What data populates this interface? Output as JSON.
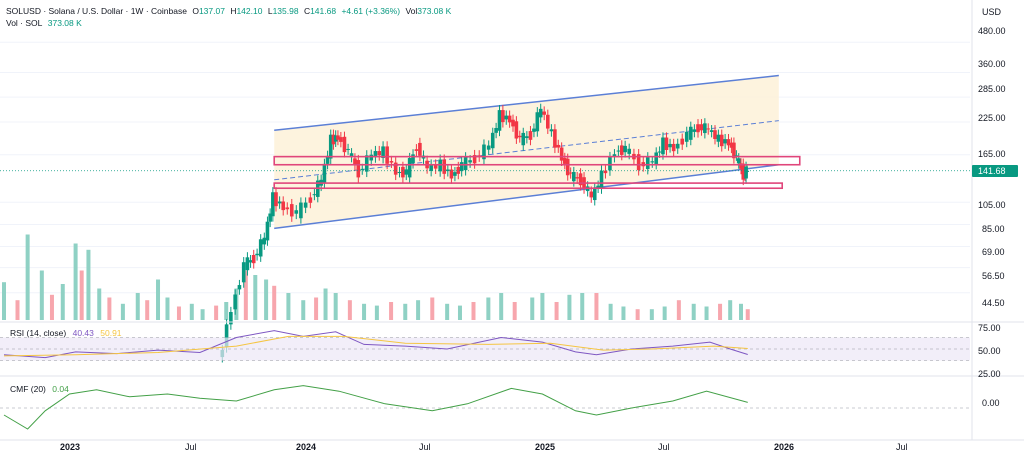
{
  "header": {
    "symbol_title": "SOLUSD · Solana / U.S. Dollar · 1W · Coinbase",
    "o_key": "O",
    "o_val": "137.07",
    "h_key": "H",
    "h_val": "142.10",
    "l_key": "L",
    "l_val": "135.98",
    "c_key": "C",
    "c_val": "141.68",
    "change": "+4.61 (+3.36%)",
    "vol_key": "Vol",
    "vol_val": "373.08 K",
    "vol_label": "Vol · SOL",
    "vol_label_val": "373.08 K"
  },
  "price_axis": {
    "currency": "USD",
    "ticks": [
      "480.00",
      "360.00",
      "285.00",
      "225.00",
      "165.00",
      "105.00",
      "85.00",
      "69.00",
      "56.50",
      "44.50"
    ],
    "last_price": "141.68"
  },
  "rsi": {
    "label": "RSI (14, close)",
    "value": "40.43",
    "ma_value": "50.91",
    "ticks": [
      "75.00",
      "50.00",
      "25.00"
    ]
  },
  "cmf": {
    "label": "CMF (20)",
    "value": "0.04",
    "ticks": [
      "0.00"
    ]
  },
  "time_axis": {
    "labels": [
      "2023",
      "Jul",
      "2024",
      "Jul",
      "2025",
      "Jul",
      "2026",
      "Jul"
    ]
  },
  "colors": {
    "up": "#089981",
    "down": "#f23645",
    "channel": "#5b7fd6",
    "zone": "#e0457b",
    "rsi_line": "#7e57c2",
    "rsi_ma": "#f5c542",
    "cmf_line": "#43a047"
  },
  "chart_data": {
    "type": "candlestick",
    "title": "SOLUSD · Solana / U.S. Dollar · 1W · Coinbase",
    "price_scale": "log",
    "ylim": [
      35,
      560
    ],
    "x_range": [
      "2022-11-15",
      "2026-10-15"
    ],
    "price_path": [
      {
        "date": "2023-10-01",
        "price": 23
      },
      {
        "date": "2023-10-20",
        "price": 38
      },
      {
        "date": "2023-11-08",
        "price": 58
      },
      {
        "date": "2023-11-22",
        "price": 62
      },
      {
        "date": "2023-12-08",
        "price": 75
      },
      {
        "date": "2023-12-20",
        "price": 110
      },
      {
        "date": "2024-01-05",
        "price": 100
      },
      {
        "date": "2024-01-25",
        "price": 95
      },
      {
        "date": "2024-02-15",
        "price": 110
      },
      {
        "date": "2024-03-01",
        "price": 130
      },
      {
        "date": "2024-03-15",
        "price": 190
      },
      {
        "date": "2024-03-25",
        "price": 195
      },
      {
        "date": "2024-04-10",
        "price": 170
      },
      {
        "date": "2024-04-25",
        "price": 140
      },
      {
        "date": "2024-05-15",
        "price": 165
      },
      {
        "date": "2024-06-01",
        "price": 170
      },
      {
        "date": "2024-06-20",
        "price": 140
      },
      {
        "date": "2024-07-05",
        "price": 140
      },
      {
        "date": "2024-07-20",
        "price": 180
      },
      {
        "date": "2024-08-05",
        "price": 145
      },
      {
        "date": "2024-08-25",
        "price": 150
      },
      {
        "date": "2024-09-10",
        "price": 135
      },
      {
        "date": "2024-09-25",
        "price": 150
      },
      {
        "date": "2024-10-15",
        "price": 160
      },
      {
        "date": "2024-11-05",
        "price": 180
      },
      {
        "date": "2024-11-20",
        "price": 240
      },
      {
        "date": "2024-12-05",
        "price": 230
      },
      {
        "date": "2024-12-20",
        "price": 190
      },
      {
        "date": "2025-01-05",
        "price": 200
      },
      {
        "date": "2025-01-20",
        "price": 255
      },
      {
        "date": "2025-02-05",
        "price": 200
      },
      {
        "date": "2025-02-20",
        "price": 160
      },
      {
        "date": "2025-03-05",
        "price": 135
      },
      {
        "date": "2025-03-20",
        "price": 130
      },
      {
        "date": "2025-04-05",
        "price": 110
      },
      {
        "date": "2025-04-20",
        "price": 135
      },
      {
        "date": "2025-05-10",
        "price": 170
      },
      {
        "date": "2025-05-25",
        "price": 175
      },
      {
        "date": "2025-06-15",
        "price": 150
      },
      {
        "date": "2025-07-05",
        "price": 155
      },
      {
        "date": "2025-07-20",
        "price": 185
      },
      {
        "date": "2025-08-05",
        "price": 175
      },
      {
        "date": "2025-08-25",
        "price": 200
      },
      {
        "date": "2025-09-10",
        "price": 215
      },
      {
        "date": "2025-09-25",
        "price": 210
      },
      {
        "date": "2025-10-10",
        "price": 190
      },
      {
        "date": "2025-10-25",
        "price": 185
      },
      {
        "date": "2025-11-05",
        "price": 160
      },
      {
        "date": "2025-11-15",
        "price": 137
      },
      {
        "date": "2025-11-20",
        "price": 141.68
      }
    ],
    "volume_series": [
      {
        "date": "2022-11-15",
        "v": 0.42
      },
      {
        "date": "2022-12-05",
        "v": 0.22
      },
      {
        "date": "2022-12-20",
        "v": 0.95
      },
      {
        "date": "2023-01-10",
        "v": 0.55
      },
      {
        "date": "2023-01-25",
        "v": 0.28
      },
      {
        "date": "2023-02-10",
        "v": 0.4
      },
      {
        "date": "2023-03-01",
        "v": 0.85
      },
      {
        "date": "2023-03-10",
        "v": 0.55
      },
      {
        "date": "2023-03-20",
        "v": 0.78
      },
      {
        "date": "2023-04-05",
        "v": 0.35
      },
      {
        "date": "2023-04-20",
        "v": 0.25
      },
      {
        "date": "2023-05-10",
        "v": 0.18
      },
      {
        "date": "2023-06-01",
        "v": 0.3
      },
      {
        "date": "2023-06-15",
        "v": 0.22
      },
      {
        "date": "2023-07-01",
        "v": 0.45
      },
      {
        "date": "2023-07-15",
        "v": 0.25
      },
      {
        "date": "2023-08-01",
        "v": 0.15
      },
      {
        "date": "2023-08-20",
        "v": 0.18
      },
      {
        "date": "2023-09-05",
        "v": 0.12
      },
      {
        "date": "2023-09-25",
        "v": 0.16
      },
      {
        "date": "2023-10-10",
        "v": 0.2
      },
      {
        "date": "2023-10-25",
        "v": 0.35
      },
      {
        "date": "2023-11-08",
        "v": 0.55
      },
      {
        "date": "2023-11-22",
        "v": 0.5
      },
      {
        "date": "2023-12-08",
        "v": 0.45
      },
      {
        "date": "2023-12-20",
        "v": 0.38
      },
      {
        "date": "2024-01-10",
        "v": 0.3
      },
      {
        "date": "2024-02-01",
        "v": 0.22
      },
      {
        "date": "2024-02-20",
        "v": 0.25
      },
      {
        "date": "2024-03-05",
        "v": 0.35
      },
      {
        "date": "2024-03-20",
        "v": 0.3
      },
      {
        "date": "2024-04-10",
        "v": 0.22
      },
      {
        "date": "2024-05-01",
        "v": 0.18
      },
      {
        "date": "2024-05-20",
        "v": 0.16
      },
      {
        "date": "2024-06-10",
        "v": 0.2
      },
      {
        "date": "2024-07-01",
        "v": 0.18
      },
      {
        "date": "2024-07-20",
        "v": 0.22
      },
      {
        "date": "2024-08-10",
        "v": 0.25
      },
      {
        "date": "2024-09-01",
        "v": 0.18
      },
      {
        "date": "2024-09-20",
        "v": 0.16
      },
      {
        "date": "2024-10-10",
        "v": 0.2
      },
      {
        "date": "2024-11-01",
        "v": 0.25
      },
      {
        "date": "2024-11-20",
        "v": 0.3
      },
      {
        "date": "2024-12-10",
        "v": 0.2
      },
      {
        "date": "2025-01-05",
        "v": 0.25
      },
      {
        "date": "2025-01-20",
        "v": 0.3
      },
      {
        "date": "2025-02-10",
        "v": 0.2
      },
      {
        "date": "2025-03-01",
        "v": 0.28
      },
      {
        "date": "2025-03-20",
        "v": 0.3
      },
      {
        "date": "2025-04-10",
        "v": 0.3
      },
      {
        "date": "2025-05-01",
        "v": 0.18
      },
      {
        "date": "2025-05-20",
        "v": 0.15
      },
      {
        "date": "2025-06-10",
        "v": 0.12
      },
      {
        "date": "2025-07-01",
        "v": 0.12
      },
      {
        "date": "2025-07-20",
        "v": 0.15
      },
      {
        "date": "2025-08-10",
        "v": 0.22
      },
      {
        "date": "2025-09-01",
        "v": 0.18
      },
      {
        "date": "2025-09-20",
        "v": 0.15
      },
      {
        "date": "2025-10-10",
        "v": 0.18
      },
      {
        "date": "2025-10-25",
        "v": 0.22
      },
      {
        "date": "2025-11-10",
        "v": 0.18
      },
      {
        "date": "2025-11-20",
        "v": 0.12
      }
    ],
    "channel_upper": [
      {
        "date": "2023-12-20",
        "price": 208
      },
      {
        "date": "2026-01-05",
        "price": 350
      }
    ],
    "channel_mid": [
      {
        "date": "2023-12-20",
        "price": 130
      },
      {
        "date": "2026-01-05",
        "price": 228
      }
    ],
    "channel_lower": [
      {
        "date": "2023-12-20",
        "price": 82
      },
      {
        "date": "2026-01-05",
        "price": 150
      }
    ],
    "zones": [
      {
        "from_date": "2023-12-20",
        "to_date": "2026-02-05",
        "low": 150,
        "high": 162
      },
      {
        "from_date": "2023-12-20",
        "to_date": "2026-01-10",
        "low": 120,
        "high": 126
      }
    ],
    "rsi_series": [
      {
        "date": "2022-11-15",
        "v": 40
      },
      {
        "date": "2023-01-15",
        "v": 35
      },
      {
        "date": "2023-03-01",
        "v": 45
      },
      {
        "date": "2023-05-01",
        "v": 42
      },
      {
        "date": "2023-07-01",
        "v": 48
      },
      {
        "date": "2023-09-01",
        "v": 44
      },
      {
        "date": "2023-10-25",
        "v": 70
      },
      {
        "date": "2023-12-20",
        "v": 82
      },
      {
        "date": "2024-02-01",
        "v": 72
      },
      {
        "date": "2024-03-20",
        "v": 80
      },
      {
        "date": "2024-05-01",
        "v": 58
      },
      {
        "date": "2024-07-01",
        "v": 55
      },
      {
        "date": "2024-09-01",
        "v": 50
      },
      {
        "date": "2024-11-20",
        "v": 70
      },
      {
        "date": "2025-01-20",
        "v": 62
      },
      {
        "date": "2025-03-10",
        "v": 45
      },
      {
        "date": "2025-04-10",
        "v": 40
      },
      {
        "date": "2025-06-01",
        "v": 50
      },
      {
        "date": "2025-08-01",
        "v": 55
      },
      {
        "date": "2025-09-25",
        "v": 62
      },
      {
        "date": "2025-10-25",
        "v": 50
      },
      {
        "date": "2025-11-20",
        "v": 40.43
      }
    ],
    "rsi_ma_series": [
      {
        "date": "2022-11-15",
        "v": 38
      },
      {
        "date": "2023-03-01",
        "v": 40
      },
      {
        "date": "2023-07-01",
        "v": 44
      },
      {
        "date": "2023-10-25",
        "v": 55
      },
      {
        "date": "2024-01-10",
        "v": 72
      },
      {
        "date": "2024-04-01",
        "v": 72
      },
      {
        "date": "2024-07-01",
        "v": 60
      },
      {
        "date": "2024-11-01",
        "v": 58
      },
      {
        "date": "2025-02-01",
        "v": 60
      },
      {
        "date": "2025-04-20",
        "v": 48
      },
      {
        "date": "2025-07-01",
        "v": 50
      },
      {
        "date": "2025-10-01",
        "v": 55
      },
      {
        "date": "2025-11-20",
        "v": 50.91
      }
    ],
    "cmf_series": [
      {
        "date": "2022-11-15",
        "v": -0.05
      },
      {
        "date": "2022-12-20",
        "v": -0.15
      },
      {
        "date": "2023-01-15",
        "v": -0.02
      },
      {
        "date": "2023-02-20",
        "v": 0.1
      },
      {
        "date": "2023-04-01",
        "v": 0.13
      },
      {
        "date": "2023-05-20",
        "v": 0.08
      },
      {
        "date": "2023-07-15",
        "v": 0.1
      },
      {
        "date": "2023-09-01",
        "v": 0.07
      },
      {
        "date": "2023-10-25",
        "v": 0.05
      },
      {
        "date": "2023-12-20",
        "v": 0.13
      },
      {
        "date": "2024-02-01",
        "v": 0.16
      },
      {
        "date": "2024-03-25",
        "v": 0.12
      },
      {
        "date": "2024-06-01",
        "v": 0.03
      },
      {
        "date": "2024-08-10",
        "v": -0.02
      },
      {
        "date": "2024-10-01",
        "v": 0.03
      },
      {
        "date": "2024-12-05",
        "v": 0.14
      },
      {
        "date": "2025-01-20",
        "v": 0.1
      },
      {
        "date": "2025-03-10",
        "v": -0.02
      },
      {
        "date": "2025-04-10",
        "v": -0.05
      },
      {
        "date": "2025-06-01",
        "v": 0.0
      },
      {
        "date": "2025-08-01",
        "v": 0.05
      },
      {
        "date": "2025-09-20",
        "v": 0.12
      },
      {
        "date": "2025-11-20",
        "v": 0.04
      }
    ]
  }
}
